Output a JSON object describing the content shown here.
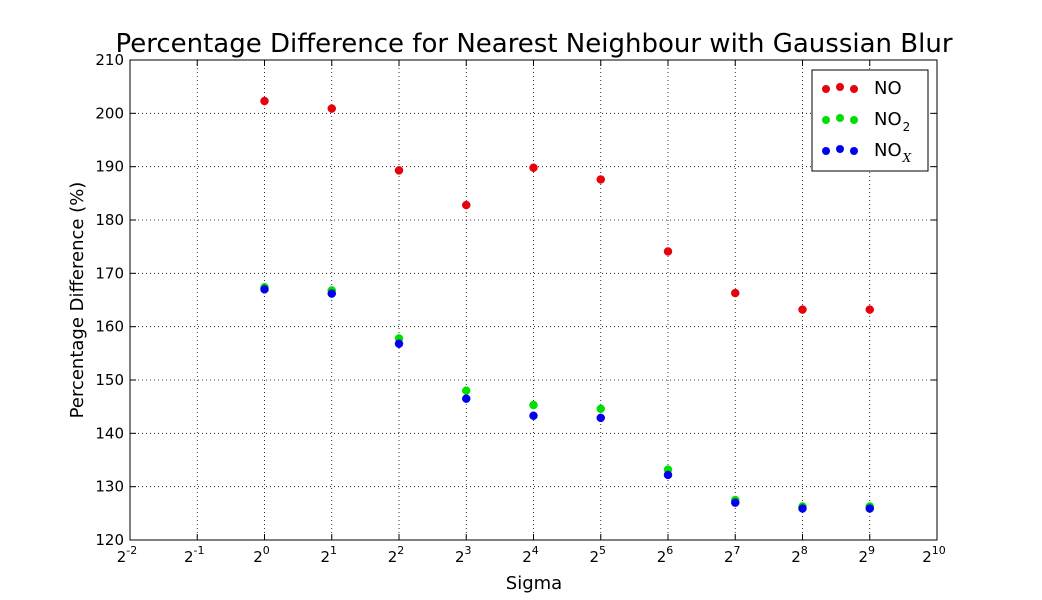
{
  "chart_data": {
    "type": "scatter",
    "title": "Percentage Difference for Nearest Neighbour with Gaussian Blur",
    "xlabel": "Sigma",
    "ylabel": "Percentage Difference (%)",
    "x_scale": "log2",
    "x_tick_exponents": [
      -2,
      -1,
      0,
      1,
      2,
      3,
      4,
      5,
      6,
      7,
      8,
      9,
      10
    ],
    "x_tick_base": "2",
    "xlim": [
      0.25,
      1024
    ],
    "ylim": [
      120,
      210
    ],
    "y_ticks": [
      120,
      130,
      140,
      150,
      160,
      170,
      180,
      190,
      200,
      210
    ],
    "grid": true,
    "legend_position": "top-right",
    "x": [
      1,
      2,
      4,
      8,
      16,
      32,
      64,
      128,
      256,
      512
    ],
    "series": [
      {
        "name": "NO",
        "label_main": "NO",
        "label_sub": "",
        "color": "#e8000b",
        "values": [
          202.3,
          200.9,
          189.3,
          182.8,
          189.8,
          187.6,
          174.1,
          166.3,
          163.2,
          163.2
        ]
      },
      {
        "name": "NO2",
        "label_main": "NO",
        "label_sub": "2",
        "color": "#00e000",
        "values": [
          167.4,
          166.8,
          157.8,
          148.0,
          145.3,
          144.6,
          133.2,
          127.5,
          126.3,
          126.3
        ]
      },
      {
        "name": "NOX",
        "label_main": "NO",
        "label_sub": "X",
        "color": "#0000ee",
        "values": [
          167.0,
          166.2,
          156.8,
          146.5,
          143.3,
          142.9,
          132.2,
          127.0,
          125.9,
          125.9
        ]
      }
    ]
  }
}
